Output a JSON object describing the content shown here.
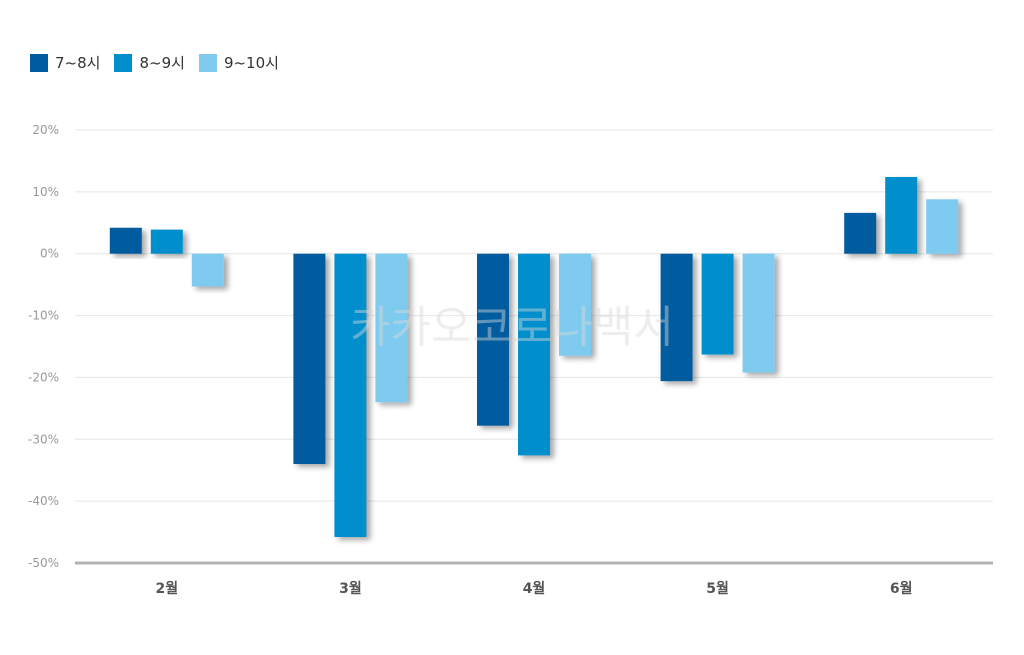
{
  "colors": {
    "series": [
      "#005b9f",
      "#008fcc",
      "#7fcbf0"
    ],
    "grid": "#e6e6e6",
    "axis": "#b3b3b3",
    "ytick": "#999999",
    "xtick": "#555555",
    "watermark": "#d9d9d9"
  },
  "watermark": "카카오코로나백서",
  "chart_data": {
    "type": "bar",
    "categories": [
      "2월",
      "3월",
      "4월",
      "5월",
      "6월"
    ],
    "series": [
      {
        "name": "7~8시",
        "values": [
          4.2,
          -34.0,
          -27.8,
          -20.6,
          6.6
        ]
      },
      {
        "name": "8~9시",
        "values": [
          3.9,
          -45.8,
          -32.6,
          -16.3,
          12.4
        ]
      },
      {
        "name": "9~10시",
        "values": [
          -5.3,
          -24.0,
          -16.5,
          -19.2,
          8.8
        ]
      }
    ],
    "ylim": [
      -50,
      20
    ],
    "yticks": [
      20,
      10,
      0,
      -10,
      -20,
      -30,
      -40,
      -50
    ],
    "ytick_labels": [
      "20%",
      "10%",
      "0%",
      "-10%",
      "-20%",
      "-30%",
      "-40%",
      "-50%"
    ],
    "grid": true,
    "legend": "top-left",
    "title": "",
    "xlabel": "",
    "ylabel": ""
  }
}
